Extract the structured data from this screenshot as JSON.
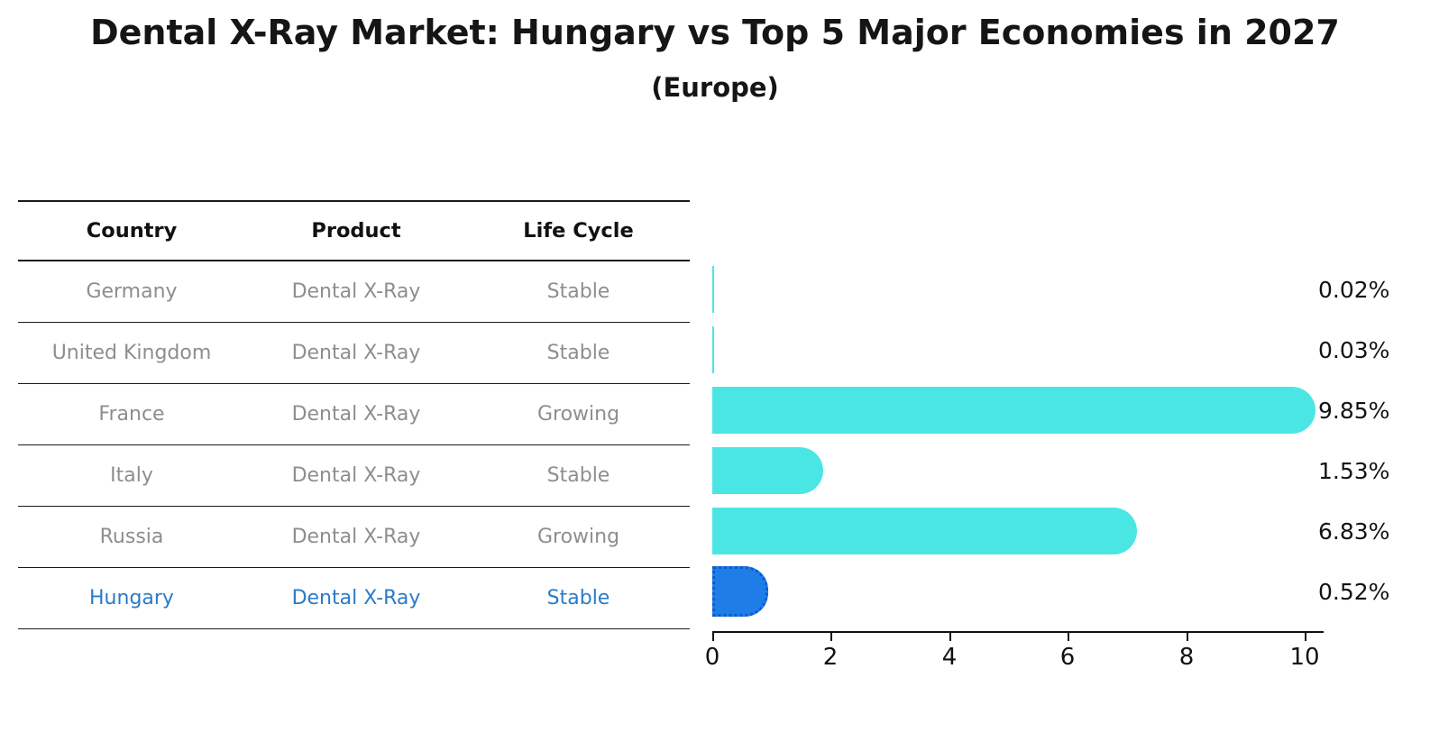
{
  "title": "Dental X-Ray Market: Hungary vs Top 5 Major Economies in 2027",
  "subtitle": "(Europe)",
  "table": {
    "headers": [
      "Country",
      "Product",
      "Life Cycle"
    ],
    "rows": [
      {
        "country": "Germany",
        "product": "Dental X-Ray",
        "life_cycle": "Stable",
        "highlight": false
      },
      {
        "country": "United Kingdom",
        "product": "Dental X-Ray",
        "life_cycle": "Stable",
        "highlight": false
      },
      {
        "country": "France",
        "product": "Dental X-Ray",
        "life_cycle": "Growing",
        "highlight": false
      },
      {
        "country": "Italy",
        "product": "Dental X-Ray",
        "life_cycle": "Stable",
        "highlight": false
      },
      {
        "country": "Russia",
        "product": "Dental X-Ray",
        "life_cycle": "Growing",
        "highlight": false
      },
      {
        "country": "Hungary",
        "product": "Dental X-Ray",
        "life_cycle": "Stable",
        "highlight": true
      }
    ]
  },
  "chart_data": {
    "type": "bar",
    "orientation": "horizontal",
    "title": "Dental X-Ray Market: Hungary vs Top 5 Major Economies in 2027",
    "subtitle": "(Europe)",
    "categories": [
      "Germany",
      "United Kingdom",
      "France",
      "Italy",
      "Russia",
      "Hungary"
    ],
    "values": [
      0.02,
      0.03,
      9.85,
      1.53,
      6.83,
      0.52
    ],
    "value_labels": [
      "0.02%",
      "0.03%",
      "9.85%",
      "1.53%",
      "6.83%",
      "0.52%"
    ],
    "xlabel": "",
    "ylabel": "",
    "xlim": [
      0,
      10.3
    ],
    "xticks": [
      0,
      2,
      4,
      6,
      8,
      10
    ],
    "grid": false,
    "legend": false,
    "highlight_index": 5,
    "bar_color": "#4ae6e3",
    "highlight_bar_color": "#1e7de6",
    "highlight_text_color": "#2a7bc8"
  }
}
